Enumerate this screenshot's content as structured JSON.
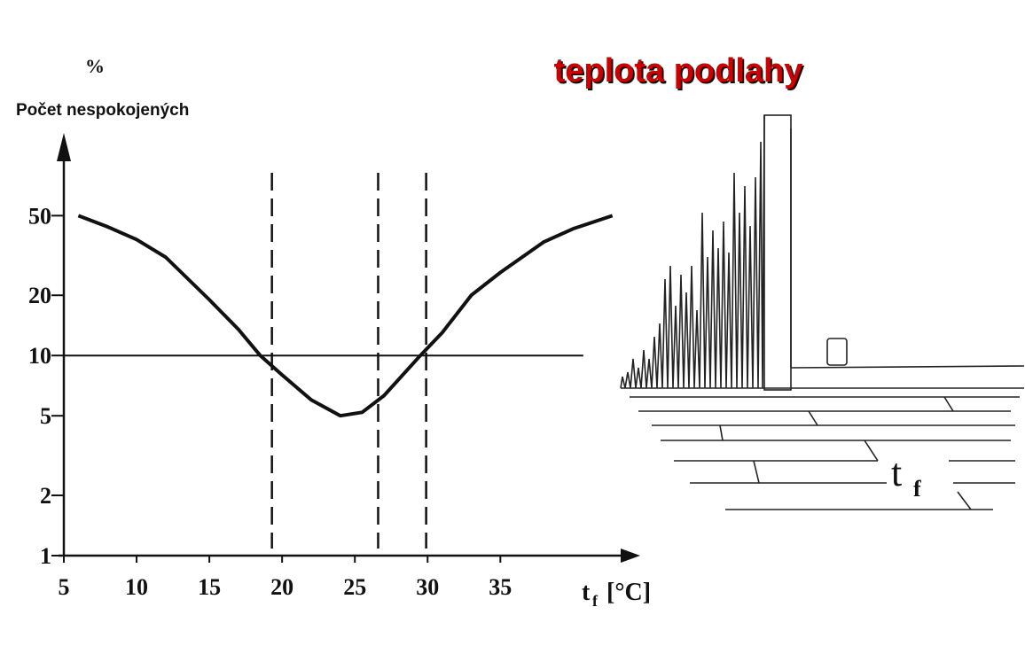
{
  "chart_data": {
    "type": "line",
    "title": "teplota podlahy",
    "y_unit": "%",
    "ylabel": "Počet nespokojených",
    "xlabel": {
      "symbol": "t",
      "subscript": "f",
      "unit": "[°C]"
    },
    "illustration_label": {
      "symbol": "t",
      "subscript": "f"
    },
    "log_y": true,
    "xlim": [
      5,
      44
    ],
    "xticks": [
      5,
      10,
      15,
      20,
      25,
      30,
      35
    ],
    "ylim": [
      1,
      117
    ],
    "yticks": [
      1,
      2,
      5,
      10,
      20,
      50
    ],
    "x": [
      6,
      8,
      10,
      12,
      15,
      17,
      18.5,
      20,
      22,
      24,
      25.5,
      27,
      29.5,
      31,
      33,
      35,
      38,
      40,
      42.7
    ],
    "series": [
      {
        "name": "Počet nespokojených",
        "color": "#111111",
        "values": [
          50,
          44,
          38,
          31,
          19,
          13.5,
          10,
          8,
          6,
          5,
          5.2,
          6.3,
          10,
          13,
          20,
          26,
          37,
          43,
          50
        ]
      }
    ],
    "reference_y": {
      "value": 10,
      "x_end": 40.7
    },
    "reference_x": [
      19.3,
      26.6,
      29.9
    ]
  }
}
